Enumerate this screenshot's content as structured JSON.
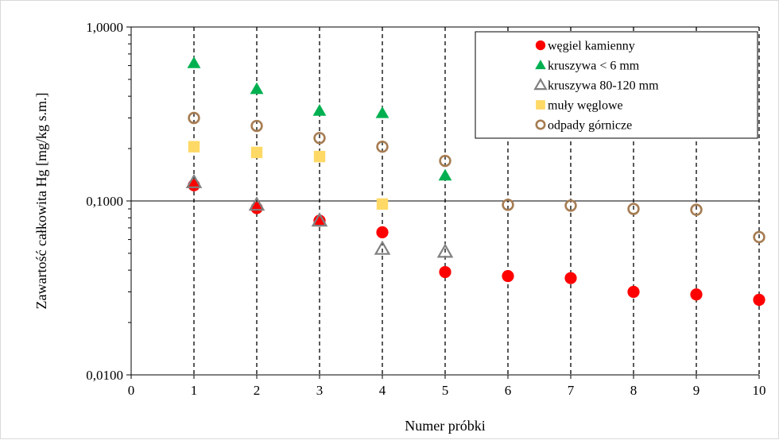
{
  "chart_data": {
    "type": "scatter",
    "title": "",
    "xlabel": "Numer próbki",
    "ylabel": "Zawartość całkowita Hg  [mg/kg s.m.]",
    "xlim": [
      0,
      10
    ],
    "ylim": [
      0.01,
      1.0
    ],
    "yscale": "log",
    "x_ticks": [
      "0",
      "1",
      "2",
      "3",
      "4",
      "5",
      "6",
      "7",
      "8",
      "9",
      "10"
    ],
    "y_ticks": [
      {
        "value": 1.0,
        "label": "1,0000"
      },
      {
        "value": 0.1,
        "label": "0,1000"
      },
      {
        "value": 0.01,
        "label": "0,0100"
      }
    ],
    "grid": "vertical dashed lines at each sample, horizontal solid line at 0,1000",
    "legend_position": "top-right",
    "series": [
      {
        "name": "węgiel kamienny",
        "color": "#ff0000",
        "marker": "filled-circle",
        "x": [
          1,
          2,
          3,
          4,
          5,
          6,
          7,
          8,
          9,
          10
        ],
        "y": [
          0.123,
          0.091,
          0.077,
          0.066,
          0.039,
          0.037,
          0.036,
          0.03,
          0.029,
          0.027
        ]
      },
      {
        "name": "kruszywa < 6 mm",
        "color": "#00b050",
        "marker": "filled-triangle",
        "x": [
          1,
          2,
          3,
          4,
          5
        ],
        "y": [
          0.62,
          0.44,
          0.33,
          0.32,
          0.14
        ]
      },
      {
        "name": "kruszywa 80-120 mm",
        "color": "#808080",
        "marker": "open-triangle",
        "x": [
          1,
          2,
          3,
          4,
          5
        ],
        "y": [
          0.128,
          0.095,
          0.077,
          0.053,
          0.051
        ]
      },
      {
        "name": "muły węglowe",
        "color": "#ffd966",
        "marker": "filled-square",
        "x": [
          1,
          2,
          3,
          4
        ],
        "y": [
          0.205,
          0.19,
          0.18,
          0.096
        ]
      },
      {
        "name": "odpady górnicze",
        "color": "#a67c52",
        "marker": "open-circle",
        "x": [
          1,
          2,
          3,
          4,
          5,
          6,
          7,
          8,
          9,
          10
        ],
        "y": [
          0.3,
          0.27,
          0.23,
          0.205,
          0.17,
          0.095,
          0.094,
          0.09,
          0.089,
          0.062
        ]
      }
    ]
  }
}
